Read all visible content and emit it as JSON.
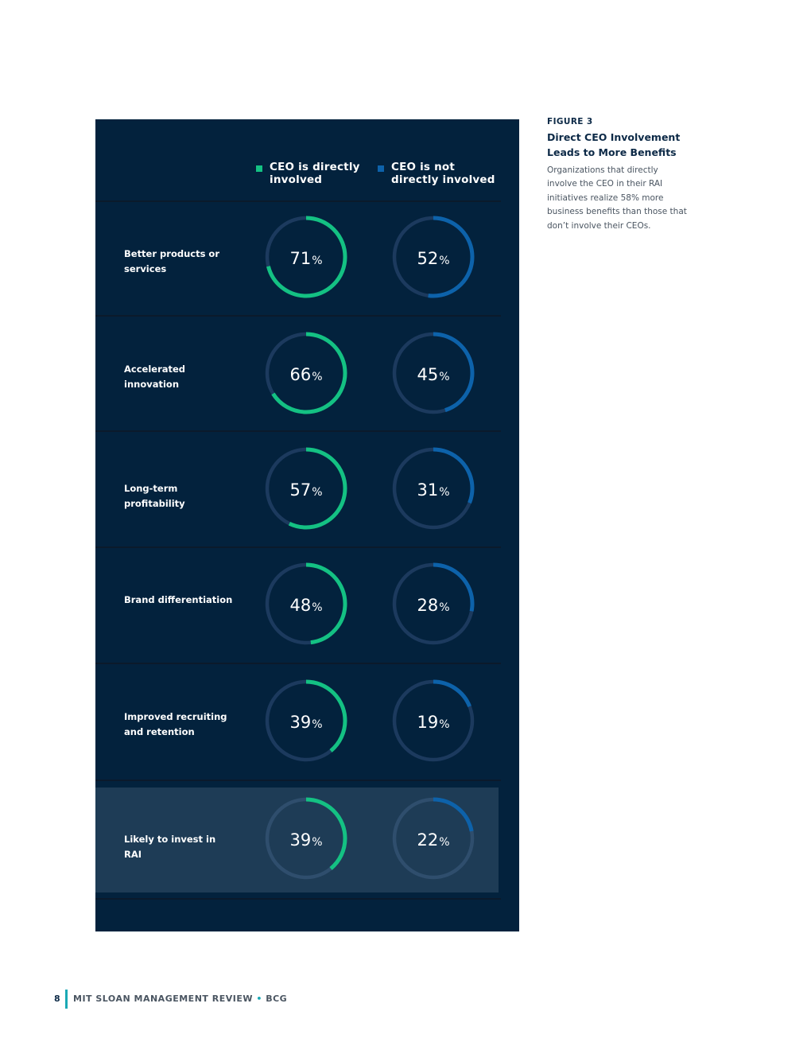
{
  "figure": {
    "label": "FIGURE 3",
    "title": "Direct CEO Involvement Leads to More Benefits",
    "description": "Organizations that directly involve the CEO in their RAI initiatives realize 58% more business benefits than those that don’t involve their CEOs."
  },
  "footer": {
    "page_number": "8",
    "publication": "MIT SLOAN MANAGEMENT REVIEW",
    "separator": "•",
    "partner": "BCG"
  },
  "colors": {
    "panel": "#03223d",
    "track": "#1c3a5e",
    "involved": "#14c183",
    "not_involved": "#0d62aa",
    "highlight_row": "#1e3c56"
  },
  "chart_data": {
    "type": "pie",
    "subtype": "donut-progress",
    "title": "",
    "unit": "%",
    "categories": [
      "Better products or services",
      "Accelerated innovation",
      "Long-term profitability",
      "Brand differentiation",
      "Improved recruiting and retention",
      "Likely to invest in RAI"
    ],
    "series": [
      {
        "name": "CEO is directly involved",
        "color": "#14c183",
        "values": [
          71,
          66,
          57,
          48,
          39,
          39
        ]
      },
      {
        "name": "CEO is not directly involved",
        "color": "#0d62aa",
        "values": [
          52,
          45,
          31,
          28,
          19,
          22
        ]
      }
    ],
    "highlighted_category": "Likely to invest in RAI"
  }
}
